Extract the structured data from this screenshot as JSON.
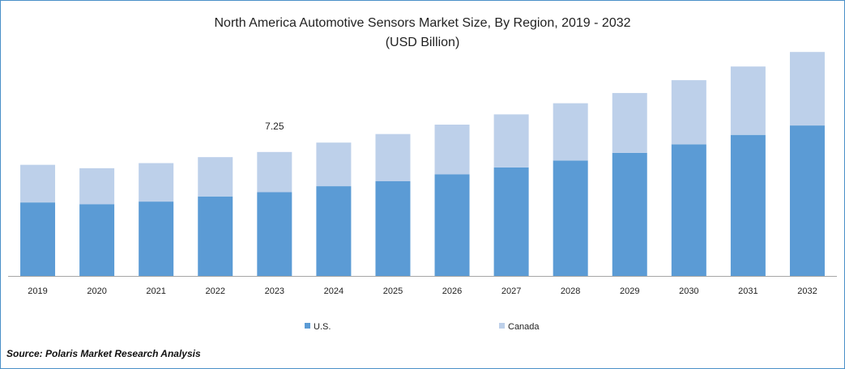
{
  "title_line1": "North America Automotive Sensors Market  Size, By Region, 2019 - 2032",
  "title_line2": "(USD Billion)",
  "source": "Source: Polaris  Market Research Analysis",
  "colors": {
    "us": "#5b9bd5",
    "canada": "#bdd0ea",
    "axis": "#a6a6a6"
  },
  "chart_data": {
    "type": "bar",
    "stacked": true,
    "categories": [
      "2019",
      "2020",
      "2021",
      "2022",
      "2023",
      "2024",
      "2025",
      "2026",
      "2027",
      "2028",
      "2029",
      "2030",
      "2031",
      "2032"
    ],
    "series": [
      {
        "name": "U.S.",
        "values": [
          4.3,
          4.2,
          4.35,
          4.65,
          4.9,
          5.25,
          5.55,
          5.95,
          6.35,
          6.75,
          7.2,
          7.7,
          8.25,
          8.8
        ]
      },
      {
        "name": "Canada",
        "values": [
          2.2,
          2.1,
          2.25,
          2.3,
          2.35,
          2.55,
          2.75,
          2.9,
          3.1,
          3.35,
          3.5,
          3.75,
          4.0,
          4.3
        ]
      }
    ],
    "data_labels": [
      {
        "category": "2023",
        "text": "7.25"
      }
    ],
    "ylim": [
      0,
      13.3
    ],
    "legend_position": "bottom",
    "grid": false
  }
}
